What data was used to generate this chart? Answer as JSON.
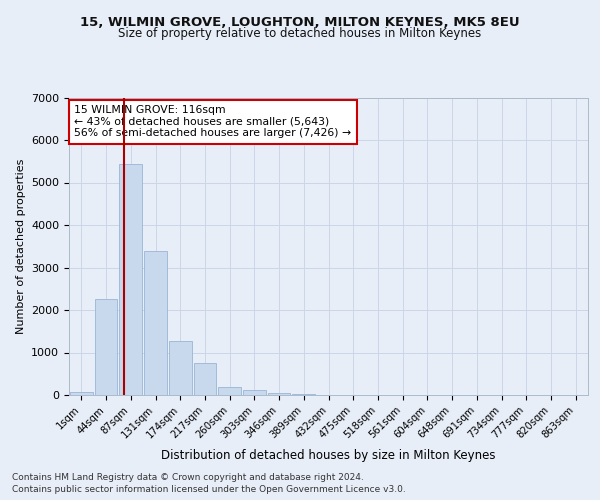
{
  "title1": "15, WILMIN GROVE, LOUGHTON, MILTON KEYNES, MK5 8EU",
  "title2": "Size of property relative to detached houses in Milton Keynes",
  "xlabel": "Distribution of detached houses by size in Milton Keynes",
  "ylabel": "Number of detached properties",
  "footer1": "Contains HM Land Registry data © Crown copyright and database right 2024.",
  "footer2": "Contains public sector information licensed under the Open Government Licence v3.0.",
  "bar_labels": [
    "1sqm",
    "44sqm",
    "87sqm",
    "131sqm",
    "174sqm",
    "217sqm",
    "260sqm",
    "303sqm",
    "346sqm",
    "389sqm",
    "432sqm",
    "475sqm",
    "518sqm",
    "561sqm",
    "604sqm",
    "648sqm",
    "691sqm",
    "734sqm",
    "777sqm",
    "820sqm",
    "863sqm"
  ],
  "bar_values": [
    60,
    2250,
    5430,
    3400,
    1280,
    750,
    200,
    110,
    55,
    20,
    8,
    2,
    0,
    0,
    0,
    0,
    0,
    0,
    0,
    0,
    0
  ],
  "bar_color": "#c8d8ed",
  "bar_edge_color": "#9ab5d5",
  "grid_color": "#ccd6e8",
  "vline_color": "#aa0000",
  "annotation_text": "15 WILMIN GROVE: 116sqm\n← 43% of detached houses are smaller (5,643)\n56% of semi-detached houses are larger (7,426) →",
  "annotation_box_color": "#ffffff",
  "annotation_box_edge": "#cc0000",
  "ylim": [
    0,
    7000
  ],
  "yticks": [
    0,
    1000,
    2000,
    3000,
    4000,
    5000,
    6000,
    7000
  ],
  "bg_color": "#e8eef8",
  "plot_bg_color": "#e8eef8",
  "vline_pos": 1.72
}
